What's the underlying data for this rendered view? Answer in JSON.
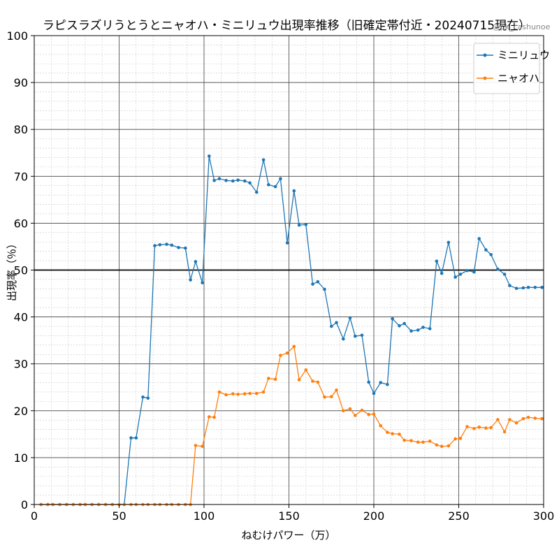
{
  "chart_data": {
    "type": "line",
    "title": "ラピスラズリうとうとニャオハ・ミニリュウ出現率推移（旧確定帯付近・20240715現在）",
    "credit": "@pk_cashunoe",
    "xlabel": "ねむけパワー（万）",
    "ylabel": "出現率（％）",
    "xlim": [
      0,
      300
    ],
    "ylim": [
      0,
      100
    ],
    "x_ticks": [
      0,
      50,
      100,
      150,
      200,
      250,
      300
    ],
    "y_ticks": [
      0,
      10,
      20,
      30,
      40,
      50,
      60,
      70,
      80,
      90,
      100
    ],
    "grid": "major and minor",
    "reference_line_y": 50,
    "legend_position": "top-right",
    "series": [
      {
        "name": "ミニリュウ",
        "color": "#1f77b4",
        "x": [
          4,
          8,
          11,
          15,
          19,
          23,
          27,
          30,
          34,
          38,
          42,
          46,
          50,
          53,
          57,
          60,
          64,
          67,
          71,
          74,
          78,
          81,
          85,
          89,
          92,
          95,
          99,
          103,
          106,
          109,
          113,
          117,
          120,
          124,
          127,
          131,
          135,
          138,
          142,
          145,
          149,
          153,
          156,
          160,
          164,
          167,
          171,
          175,
          178,
          182,
          186,
          189,
          193,
          197,
          200,
          204,
          208,
          211,
          215,
          218,
          222,
          226,
          229,
          233,
          237,
          240,
          244,
          248,
          251,
          255,
          259,
          262,
          266,
          269,
          273,
          277,
          280,
          284,
          288,
          291,
          295,
          299
        ],
        "values": [
          0,
          0,
          0,
          0,
          0,
          0,
          0,
          0,
          0,
          0,
          0,
          0,
          0,
          0,
          14.2,
          14.2,
          22.9,
          22.7,
          55.2,
          55.4,
          55.5,
          55.3,
          54.8,
          54.7,
          47.9,
          51.8,
          47.3,
          74.3,
          69.1,
          69.5,
          69.1,
          69,
          69.2,
          69,
          68.6,
          66.6,
          73.5,
          68.2,
          67.8,
          69.5,
          55.8,
          66.9,
          59.6,
          59.7,
          47,
          47.5,
          45.9,
          38,
          38.8,
          35.3,
          39.8,
          35.9,
          36.1,
          26.1,
          23.7,
          26,
          25.6,
          39.6,
          38.1,
          38.6,
          37,
          37.2,
          37.8,
          37.5,
          51.9,
          49.3,
          55.9,
          48.5,
          49.1,
          49.9,
          49.6,
          56.7,
          54.3,
          53.3,
          50.2,
          49.1,
          46.7,
          46.1,
          46.2,
          46.3,
          46.3,
          46.3
        ]
      },
      {
        "name": "ニャオハ",
        "color": "#ff7f0e",
        "x": [
          4,
          8,
          11,
          15,
          19,
          23,
          27,
          30,
          34,
          38,
          42,
          46,
          50,
          53,
          57,
          60,
          64,
          67,
          71,
          74,
          78,
          81,
          85,
          89,
          92,
          95,
          99,
          103,
          106,
          109,
          113,
          117,
          120,
          124,
          127,
          131,
          135,
          138,
          142,
          145,
          149,
          153,
          156,
          160,
          164,
          167,
          171,
          175,
          178,
          182,
          186,
          189,
          193,
          197,
          200,
          204,
          208,
          211,
          215,
          218,
          222,
          226,
          229,
          233,
          237,
          240,
          244,
          248,
          251,
          255,
          259,
          262,
          266,
          269,
          273,
          277,
          280,
          284,
          288,
          291,
          295,
          299
        ],
        "values": [
          0,
          0,
          0,
          0,
          0,
          0,
          0,
          0,
          0,
          0,
          0,
          0,
          0,
          0,
          0,
          0,
          0,
          0,
          0,
          0,
          0,
          0,
          0,
          0,
          0,
          12.6,
          12.4,
          18.7,
          18.6,
          24,
          23.4,
          23.6,
          23.5,
          23.6,
          23.7,
          23.7,
          24,
          26.9,
          26.7,
          31.8,
          32.3,
          33.7,
          26.6,
          28.7,
          26.3,
          26.1,
          22.9,
          23,
          24.4,
          20,
          20.4,
          19,
          20.1,
          19.2,
          19.3,
          16.8,
          15.4,
          15.1,
          15,
          13.7,
          13.6,
          13.3,
          13.3,
          13.5,
          12.7,
          12.4,
          12.5,
          14,
          14.1,
          16.6,
          16.2,
          16.5,
          16.3,
          16.4,
          18.1,
          15.5,
          18.1,
          17.4,
          18.3,
          18.6,
          18.4,
          18.3
        ]
      }
    ]
  }
}
